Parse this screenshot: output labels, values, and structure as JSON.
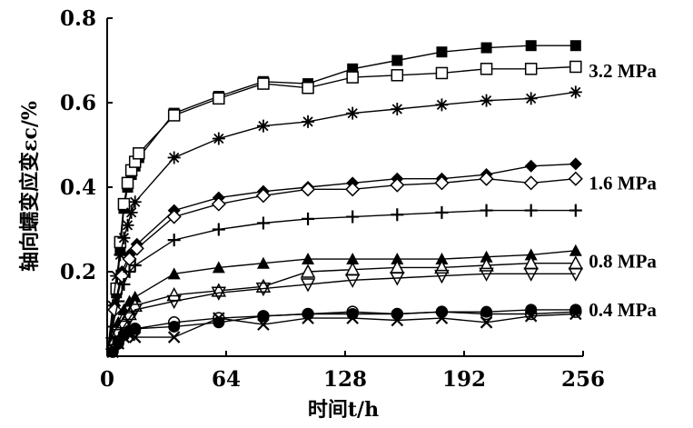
{
  "chart_data": {
    "type": "line",
    "xlabel": "时间t/h",
    "ylabel": "轴向蠕变应变εc/%",
    "xlim": [
      0,
      256
    ],
    "ylim": [
      0,
      0.8
    ],
    "xticks": [
      0,
      64,
      128,
      192,
      256
    ],
    "yticks": [
      0.2,
      0.4,
      0.6,
      0.8
    ],
    "grid": false,
    "annotations": [
      {
        "text": "3.2 MPa",
        "x": 262,
        "y": 0.675
      },
      {
        "text": "1.6 MPa",
        "x": 262,
        "y": 0.41
      },
      {
        "text": "0.8 MPa",
        "x": 262,
        "y": 0.225
      },
      {
        "text": "0.4 MPa",
        "x": 262,
        "y": 0.11
      }
    ],
    "series": [
      {
        "marker": "filled-square",
        "x": [
          5,
          7,
          9,
          11,
          13,
          15,
          17,
          36,
          60,
          84,
          108,
          132,
          156,
          180,
          204,
          228,
          252
        ],
        "y": [
          0.15,
          0.25,
          0.35,
          0.4,
          0.43,
          0.45,
          0.47,
          0.575,
          0.615,
          0.65,
          0.645,
          0.68,
          0.7,
          0.72,
          0.73,
          0.735,
          0.735
        ]
      },
      {
        "marker": "open-square",
        "x": [
          5,
          7,
          9,
          11,
          13,
          15,
          17,
          36,
          60,
          84,
          108,
          132,
          156,
          180,
          204,
          228,
          252
        ],
        "y": [
          0.16,
          0.27,
          0.36,
          0.41,
          0.44,
          0.46,
          0.48,
          0.57,
          0.61,
          0.645,
          0.635,
          0.66,
          0.665,
          0.67,
          0.68,
          0.68,
          0.685
        ]
      },
      {
        "marker": "asterisk",
        "x": [
          3,
          5,
          7,
          9,
          11,
          13,
          15,
          36,
          60,
          84,
          108,
          132,
          156,
          180,
          204,
          228,
          252
        ],
        "y": [
          0.12,
          0.19,
          0.24,
          0.28,
          0.31,
          0.34,
          0.365,
          0.47,
          0.515,
          0.545,
          0.555,
          0.575,
          0.585,
          0.595,
          0.605,
          0.61,
          0.625
        ]
      },
      {
        "marker": "filled-diamond",
        "x": [
          4,
          8,
          12,
          16,
          36,
          60,
          84,
          108,
          132,
          156,
          180,
          204,
          228,
          252
        ],
        "y": [
          0.12,
          0.2,
          0.24,
          0.265,
          0.345,
          0.375,
          0.39,
          0.4,
          0.41,
          0.42,
          0.42,
          0.43,
          0.45,
          0.455
        ]
      },
      {
        "marker": "open-diamond",
        "x": [
          4,
          8,
          12,
          16,
          36,
          60,
          84,
          108,
          132,
          156,
          180,
          204,
          228,
          252
        ],
        "y": [
          0.11,
          0.19,
          0.23,
          0.255,
          0.33,
          0.36,
          0.38,
          0.395,
          0.395,
          0.405,
          0.41,
          0.42,
          0.41,
          0.42
        ]
      },
      {
        "marker": "plus",
        "x": [
          3,
          6,
          9,
          12,
          15,
          36,
          60,
          84,
          108,
          132,
          156,
          180,
          204,
          228,
          252
        ],
        "y": [
          0.07,
          0.13,
          0.17,
          0.2,
          0.215,
          0.275,
          0.3,
          0.315,
          0.325,
          0.33,
          0.335,
          0.34,
          0.345,
          0.345,
          0.345
        ]
      },
      {
        "marker": "filled-triangle",
        "x": [
          3,
          6,
          9,
          12,
          15,
          36,
          60,
          84,
          108,
          132,
          156,
          180,
          204,
          228,
          252
        ],
        "y": [
          0.04,
          0.08,
          0.11,
          0.13,
          0.14,
          0.195,
          0.21,
          0.22,
          0.23,
          0.23,
          0.23,
          0.23,
          0.235,
          0.24,
          0.25
        ]
      },
      {
        "marker": "open-triangle",
        "x": [
          3,
          6,
          9,
          12,
          15,
          36,
          60,
          84,
          108,
          132,
          156,
          180,
          204,
          228,
          252
        ],
        "y": [
          0.03,
          0.06,
          0.08,
          0.1,
          0.12,
          0.145,
          0.155,
          0.165,
          0.2,
          0.205,
          0.21,
          0.21,
          0.215,
          0.22,
          0.22
        ]
      },
      {
        "marker": "down-triangle",
        "x": [
          3,
          6,
          9,
          12,
          15,
          36,
          60,
          84,
          108,
          132,
          156,
          180,
          204,
          228,
          252
        ],
        "y": [
          0.03,
          0.05,
          0.07,
          0.09,
          0.11,
          0.13,
          0.15,
          0.16,
          0.17,
          0.18,
          0.185,
          0.19,
          0.195,
          0.195,
          0.195
        ]
      },
      {
        "marker": "filled-circle",
        "x": [
          3,
          6,
          9,
          12,
          15,
          36,
          60,
          84,
          108,
          132,
          156,
          180,
          204,
          228,
          252
        ],
        "y": [
          0.01,
          0.03,
          0.05,
          0.06,
          0.065,
          0.07,
          0.08,
          0.095,
          0.1,
          0.1,
          0.1,
          0.105,
          0.105,
          0.11,
          0.11
        ]
      },
      {
        "marker": "open-circle",
        "x": [
          3,
          6,
          9,
          12,
          15,
          36,
          60,
          84,
          108,
          132,
          156,
          180,
          204,
          228,
          252
        ],
        "y": [
          0.015,
          0.035,
          0.05,
          0.06,
          0.065,
          0.08,
          0.09,
          0.095,
          0.1,
          0.105,
          0.1,
          0.105,
          0.1,
          0.1,
          0.105
        ]
      },
      {
        "marker": "cross",
        "x": [
          3,
          6,
          9,
          12,
          15,
          36,
          60,
          84,
          108,
          132,
          156,
          180,
          204,
          228,
          252
        ],
        "y": [
          0.01,
          0.03,
          0.045,
          0.05,
          0.045,
          0.045,
          0.09,
          0.075,
          0.09,
          0.09,
          0.085,
          0.09,
          0.08,
          0.095,
          0.1
        ]
      }
    ]
  }
}
